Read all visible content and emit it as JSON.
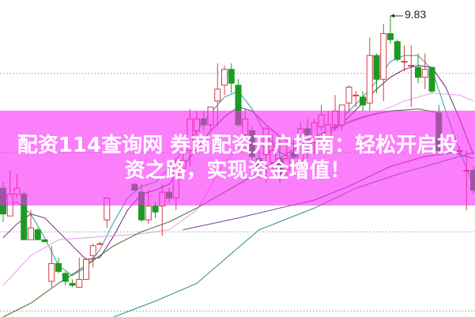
{
  "banner": {
    "text": "配资114查询网 券商配资开户指南：轻松开启投资之路，实现资金增值！"
  },
  "colors": {
    "up": "#d23c44",
    "down": "#1c9a22",
    "ma5": "#3a9a9a",
    "ma10": "#6a2a7a",
    "ma20": "#e3a0e3",
    "ma30": "#3e6a2a",
    "ma60": "#7a3a9a",
    "ma120": "#2a8a8a",
    "banner": "#fb7efb",
    "grid": "#999999"
  },
  "chart_data": {
    "type": "candlestick",
    "title": "",
    "xlabel": "",
    "ylabel": "",
    "ylim": [
      8.31,
      9.91
    ],
    "grid": true,
    "gridlines": [
      9.54,
      9.14,
      8.74,
      8.34
    ],
    "annotation": {
      "label": "9.83",
      "index": 56,
      "value": 9.83
    },
    "candles": [
      {
        "i": 0,
        "o": 8.96,
        "h": 8.99,
        "l": 8.79,
        "c": 8.83
      },
      {
        "i": 1,
        "o": 8.82,
        "h": 9.05,
        "l": 8.82,
        "c": 8.93
      },
      {
        "i": 2,
        "o": 8.93,
        "h": 9.03,
        "l": 8.91,
        "c": 8.96
      },
      {
        "i": 3,
        "o": 8.93,
        "h": 8.94,
        "l": 8.7,
        "c": 8.7
      },
      {
        "i": 4,
        "o": 8.7,
        "h": 8.85,
        "l": 8.7,
        "c": 8.76
      },
      {
        "i": 5,
        "o": 8.75,
        "h": 8.76,
        "l": 8.7,
        "c": 8.7
      },
      {
        "i": 6,
        "o": 8.7,
        "h": 8.7,
        "l": 8.69,
        "c": 8.69
      },
      {
        "i": 7,
        "o": 8.49,
        "h": 8.67,
        "l": 8.46,
        "c": 8.58
      },
      {
        "i": 8,
        "o": 8.58,
        "h": 8.61,
        "l": 8.53,
        "c": 8.54
      },
      {
        "i": 9,
        "o": 8.53,
        "h": 8.54,
        "l": 8.47,
        "c": 8.49
      },
      {
        "i": 10,
        "o": 8.48,
        "h": 8.5,
        "l": 8.46,
        "c": 8.47
      },
      {
        "i": 11,
        "o": 8.46,
        "h": 8.61,
        "l": 8.46,
        "c": 8.5
      },
      {
        "i": 12,
        "o": 8.5,
        "h": 8.61,
        "l": 8.5,
        "c": 8.6
      },
      {
        "i": 13,
        "o": 8.62,
        "h": 8.68,
        "l": 8.56,
        "c": 8.67
      },
      {
        "i": 14,
        "o": 8.68,
        "h": 8.69,
        "l": 8.68,
        "c": 8.68
      },
      {
        "i": 15,
        "o": 8.8,
        "h": 8.91,
        "l": 8.76,
        "c": 8.91
      },
      {
        "i": 19,
        "o": 8.98,
        "h": 8.98,
        "l": 8.95,
        "c": 8.95
      },
      {
        "i": 20,
        "o": 8.94,
        "h": 8.98,
        "l": 8.79,
        "c": 8.8
      },
      {
        "i": 21,
        "o": 8.8,
        "h": 8.95,
        "l": 8.78,
        "c": 8.87
      },
      {
        "i": 22,
        "o": 8.87,
        "h": 8.89,
        "l": 8.81,
        "c": 8.84
      },
      {
        "i": 23,
        "o": 8.87,
        "h": 8.98,
        "l": 8.72,
        "c": 8.94
      },
      {
        "i": 24,
        "o": 8.94,
        "h": 8.96,
        "l": 8.89,
        "c": 8.91
      },
      {
        "i": 25,
        "o": 8.91,
        "h": 9.11,
        "l": 8.85,
        "c": 9.09
      },
      {
        "i": 26,
        "o": 9.06,
        "h": 9.14,
        "l": 9.03,
        "c": 9.1
      },
      {
        "i": 27,
        "o": 9.15,
        "h": 9.36,
        "l": 9.07,
        "c": 9.31
      },
      {
        "i": 28,
        "o": 9.25,
        "h": 9.35,
        "l": 9.21,
        "c": 9.31
      },
      {
        "i": 29,
        "o": 9.31,
        "h": 9.35,
        "l": 9.25,
        "c": 9.28
      },
      {
        "i": 30,
        "o": 9.28,
        "h": 9.37,
        "l": 9.25,
        "c": 9.37
      },
      {
        "i": 31,
        "o": 9.4,
        "h": 9.59,
        "l": 9.27,
        "c": 9.46
      },
      {
        "i": 32,
        "o": 9.48,
        "h": 9.58,
        "l": 9.43,
        "c": 9.56
      },
      {
        "i": 33,
        "o": 9.56,
        "h": 9.59,
        "l": 9.44,
        "c": 9.49
      },
      {
        "i": 34,
        "o": 9.48,
        "h": 9.51,
        "l": 9.27,
        "c": 9.28
      },
      {
        "i": 35,
        "o": 9.23,
        "h": 9.36,
        "l": 9.21,
        "c": 9.31
      },
      {
        "i": 36,
        "o": 9.25,
        "h": 9.27,
        "l": 9.09,
        "c": 9.12
      },
      {
        "i": 37,
        "o": 9.11,
        "h": 9.15,
        "l": 9.01,
        "c": 9.07
      },
      {
        "i": 38,
        "o": 9.13,
        "h": 9.27,
        "l": 8.99,
        "c": 9.26
      },
      {
        "i": 39,
        "o": 9.09,
        "h": 9.23,
        "l": 9.05,
        "c": 9.15
      },
      {
        "i": 40,
        "o": 9.11,
        "h": 9.21,
        "l": 8.99,
        "c": 9.03
      },
      {
        "i": 41,
        "o": 9.05,
        "h": 9.19,
        "l": 9.01,
        "c": 9.11
      },
      {
        "i": 42,
        "o": 9.14,
        "h": 9.21,
        "l": 9.05,
        "c": 9.12
      },
      {
        "i": 43,
        "o": 9.07,
        "h": 9.29,
        "l": 9.05,
        "c": 9.26
      },
      {
        "i": 44,
        "o": 9.26,
        "h": 9.31,
        "l": 9.11,
        "c": 9.23
      },
      {
        "i": 45,
        "o": 9.19,
        "h": 9.31,
        "l": 9.13,
        "c": 9.29
      },
      {
        "i": 46,
        "o": 9.27,
        "h": 9.38,
        "l": 9.25,
        "c": 9.33
      },
      {
        "i": 47,
        "o": 9.22,
        "h": 9.35,
        "l": 9.21,
        "c": 9.28
      },
      {
        "i": 48,
        "o": 9.28,
        "h": 9.43,
        "l": 9.25,
        "c": 9.35
      },
      {
        "i": 49,
        "o": 9.28,
        "h": 9.38,
        "l": 9.25,
        "c": 9.38
      },
      {
        "i": 50,
        "o": 9.39,
        "h": 9.48,
        "l": 9.35,
        "c": 9.47
      },
      {
        "i": 51,
        "o": 9.43,
        "h": 9.45,
        "l": 9.37,
        "c": 9.43
      },
      {
        "i": 52,
        "o": 9.42,
        "h": 9.45,
        "l": 9.35,
        "c": 9.38
      },
      {
        "i": 53,
        "o": 9.39,
        "h": 9.72,
        "l": 9.35,
        "c": 9.63
      },
      {
        "i": 54,
        "o": 9.63,
        "h": 9.64,
        "l": 9.44,
        "c": 9.51
      },
      {
        "i": 55,
        "o": 9.51,
        "h": 9.79,
        "l": 9.4,
        "c": 9.74
      },
      {
        "i": 56,
        "o": 9.74,
        "h": 9.83,
        "l": 9.69,
        "c": 9.71
      },
      {
        "i": 57,
        "o": 9.7,
        "h": 9.71,
        "l": 9.6,
        "c": 9.61
      },
      {
        "i": 58,
        "o": 9.6,
        "h": 9.68,
        "l": 9.55,
        "c": 9.6
      },
      {
        "i": 59,
        "o": 9.58,
        "h": 9.68,
        "l": 9.37,
        "c": 9.58
      },
      {
        "i": 60,
        "o": 9.57,
        "h": 9.64,
        "l": 9.49,
        "c": 9.52
      },
      {
        "i": 61,
        "o": 9.52,
        "h": 9.64,
        "l": 9.46,
        "c": 9.56
      },
      {
        "i": 62,
        "o": 9.57,
        "h": 9.57,
        "l": 9.44,
        "c": 9.45
      },
      {
        "i": 63,
        "o": 9.34,
        "h": 9.38,
        "l": 9.13,
        "c": 9.15
      },
      {
        "i": 66,
        "o": 9.15,
        "h": 9.17,
        "l": 9.13,
        "c": 9.15
      },
      {
        "i": 67,
        "o": 9.05,
        "h": 9.15,
        "l": 8.85,
        "c": 9.05
      },
      {
        "i": 68,
        "o": 9.05,
        "h": 9.07,
        "l": 8.93,
        "c": 8.95
      }
    ],
    "lines": [
      {
        "key": "ma5",
        "points": [
          [
            0,
            8.87
          ],
          [
            2,
            8.89
          ],
          [
            4,
            8.83
          ],
          [
            6,
            8.71
          ],
          [
            8,
            8.57
          ],
          [
            10,
            8.52
          ],
          [
            12,
            8.56
          ],
          [
            14,
            8.65
          ],
          [
            16,
            8.79
          ],
          [
            18,
            8.91
          ],
          [
            20,
            8.97
          ],
          [
            22,
            8.99
          ],
          [
            24,
            9.06
          ],
          [
            26,
            9.15
          ],
          [
            28,
            9.25
          ],
          [
            30,
            9.34
          ],
          [
            32,
            9.42
          ],
          [
            34,
            9.45
          ],
          [
            36,
            9.36
          ],
          [
            38,
            9.23
          ],
          [
            40,
            9.14
          ],
          [
            42,
            9.11
          ],
          [
            44,
            9.15
          ],
          [
            46,
            9.22
          ],
          [
            48,
            9.28
          ],
          [
            50,
            9.35
          ],
          [
            52,
            9.42
          ],
          [
            54,
            9.5
          ],
          [
            56,
            9.6
          ],
          [
            58,
            9.63
          ],
          [
            60,
            9.63
          ],
          [
            62,
            9.56
          ],
          [
            64,
            9.35
          ],
          [
            66,
            9.15
          ],
          [
            68,
            8.97
          ]
        ]
      },
      {
        "key": "ma10",
        "points": [
          [
            0,
            8.71
          ],
          [
            2,
            8.78
          ],
          [
            4,
            8.83
          ],
          [
            6,
            8.81
          ],
          [
            8,
            8.74
          ],
          [
            10,
            8.67
          ],
          [
            12,
            8.6
          ],
          [
            14,
            8.61
          ],
          [
            16,
            8.72
          ],
          [
            18,
            8.85
          ],
          [
            20,
            8.93
          ],
          [
            22,
            8.95
          ],
          [
            24,
            8.98
          ],
          [
            26,
            9.07
          ],
          [
            28,
            9.16
          ],
          [
            30,
            9.25
          ],
          [
            32,
            9.32
          ],
          [
            34,
            9.37
          ],
          [
            36,
            9.35
          ],
          [
            38,
            9.28
          ],
          [
            40,
            9.22
          ],
          [
            42,
            9.18
          ],
          [
            44,
            9.18
          ],
          [
            46,
            9.21
          ],
          [
            48,
            9.26
          ],
          [
            50,
            9.32
          ],
          [
            52,
            9.39
          ],
          [
            54,
            9.46
          ],
          [
            56,
            9.52
          ],
          [
            58,
            9.56
          ],
          [
            60,
            9.58
          ],
          [
            62,
            9.57
          ],
          [
            64,
            9.47
          ],
          [
            66,
            9.31
          ],
          [
            68,
            9.13
          ]
        ]
      },
      {
        "key": "ma20",
        "points": [
          [
            0,
            8.47
          ],
          [
            4,
            8.62
          ],
          [
            8,
            8.7
          ],
          [
            12,
            8.71
          ],
          [
            16,
            8.72
          ],
          [
            20,
            8.73
          ],
          [
            24,
            8.75
          ],
          [
            28,
            8.85
          ],
          [
            30,
            8.97
          ],
          [
            32,
            9.09
          ],
          [
            34,
            9.16
          ],
          [
            38,
            9.18
          ],
          [
            42,
            9.2
          ],
          [
            46,
            9.22
          ],
          [
            50,
            9.29
          ],
          [
            54,
            9.34
          ],
          [
            58,
            9.4
          ],
          [
            62,
            9.44
          ],
          [
            66,
            9.43
          ],
          [
            68,
            9.4
          ]
        ]
      },
      {
        "key": "ma30",
        "points": [
          [
            0,
            8.31
          ],
          [
            4,
            8.38
          ],
          [
            8,
            8.48
          ],
          [
            12,
            8.57
          ],
          [
            16,
            8.67
          ],
          [
            20,
            8.74
          ],
          [
            24,
            8.79
          ],
          [
            28,
            8.86
          ],
          [
            32,
            8.94
          ],
          [
            36,
            9.02
          ],
          [
            40,
            9.11
          ],
          [
            44,
            9.2
          ],
          [
            48,
            9.27
          ],
          [
            52,
            9.32
          ],
          [
            56,
            9.35
          ],
          [
            60,
            9.36
          ],
          [
            63,
            9.34
          ]
        ]
      },
      {
        "key": "ma60",
        "points": [
          [
            26,
            8.75
          ],
          [
            30,
            8.78
          ],
          [
            34,
            8.81
          ],
          [
            40,
            8.86
          ],
          [
            45,
            8.9
          ],
          [
            50,
            8.97
          ],
          [
            56,
            9.07
          ],
          [
            61,
            9.12
          ],
          [
            65,
            9.14
          ],
          [
            68,
            9.11
          ]
        ]
      },
      {
        "key": "ma120",
        "points": [
          [
            16,
            8.31
          ],
          [
            22,
            8.39
          ],
          [
            28,
            8.48
          ],
          [
            34,
            8.66
          ],
          [
            37,
            8.75
          ],
          [
            45,
            8.86
          ],
          [
            51,
            8.96
          ],
          [
            57,
            9.03
          ],
          [
            63,
            9.09
          ],
          [
            68,
            9.14
          ]
        ]
      }
    ]
  }
}
